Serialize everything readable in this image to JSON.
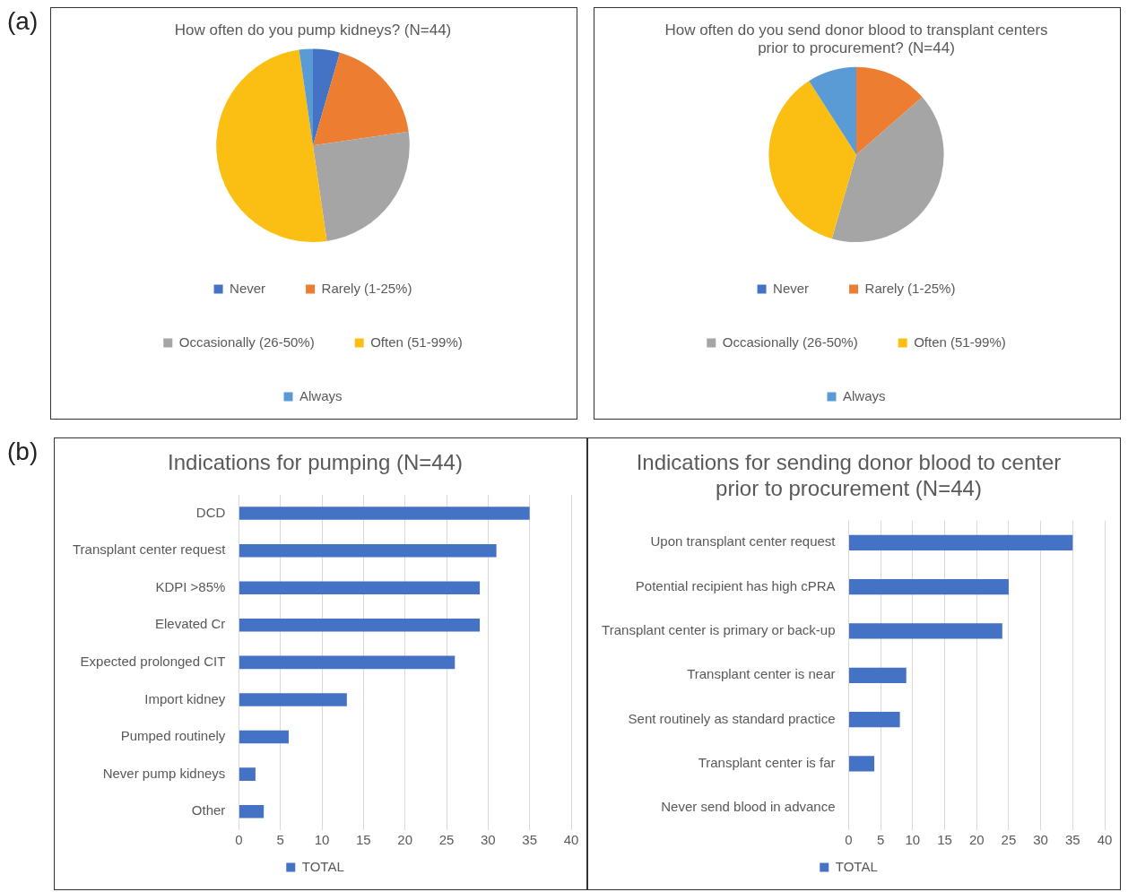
{
  "chart_data": [
    {
      "type": "pie",
      "title": "How often do you pump kidneys? (N=44)",
      "annotations": [
        "(a)"
      ],
      "categories": [
        "Never",
        "Rarely (1-25%)",
        "Occasionally (26-50%)",
        "Often (51-99%)",
        "Always"
      ],
      "values": [
        4.5,
        18.2,
        25.0,
        50.0,
        2.3
      ],
      "colors": [
        "#4472c4",
        "#ed7d31",
        "#a5a5a5",
        "#fbbf14",
        "#5b9bd5"
      ],
      "legend": "bottom"
    },
    {
      "type": "pie",
      "title": "How often do you send donor blood to transplant centers prior to procurement? (N=44)",
      "categories": [
        "Never",
        "Rarely (1-25%)",
        "Occasionally (26-50%)",
        "Often (51-99%)",
        "Always"
      ],
      "values": [
        0,
        13.6,
        40.9,
        36.4,
        9.1
      ],
      "colors": [
        "#4472c4",
        "#ed7d31",
        "#a5a5a5",
        "#fbbf14",
        "#5b9bd5"
      ],
      "legend": "bottom"
    },
    {
      "type": "bar",
      "orientation": "horizontal",
      "title": "Indications for pumping (N=44)",
      "annotations": [
        "(b)"
      ],
      "categories": [
        "DCD",
        "Transplant center request",
        "KDPI >85%",
        "Elevated Cr",
        "Expected prolonged CIT",
        "Import kidney",
        "Pumped routinely",
        "Never pump kidneys",
        "Other"
      ],
      "series": [
        {
          "name": "TOTAL",
          "color": "#4472c4",
          "values": [
            35,
            31,
            29,
            29,
            26,
            13,
            6,
            2,
            3
          ]
        }
      ],
      "xlim": [
        0,
        40
      ],
      "xticks": [
        0,
        5,
        10,
        15,
        20,
        25,
        30,
        35,
        40
      ],
      "grid": "x",
      "legend": "bottom"
    },
    {
      "type": "bar",
      "orientation": "horizontal",
      "title": "Indications for sending donor blood to center prior to procurement (N=44)",
      "categories": [
        "Upon transplant center request",
        "Potential recipient has high cPRA",
        "Transplant center is primary or back-up",
        "Transplant center is near",
        "Sent routinely as standard practice",
        "Transplant center is far",
        "Never send blood in advance"
      ],
      "series": [
        {
          "name": "TOTAL",
          "color": "#4472c4",
          "values": [
            35,
            25,
            24,
            9,
            8,
            4,
            0
          ]
        }
      ],
      "xlim": [
        0,
        40
      ],
      "xticks": [
        0,
        5,
        10,
        15,
        20,
        25,
        30,
        35,
        40
      ],
      "grid": "x",
      "legend": "bottom"
    }
  ]
}
